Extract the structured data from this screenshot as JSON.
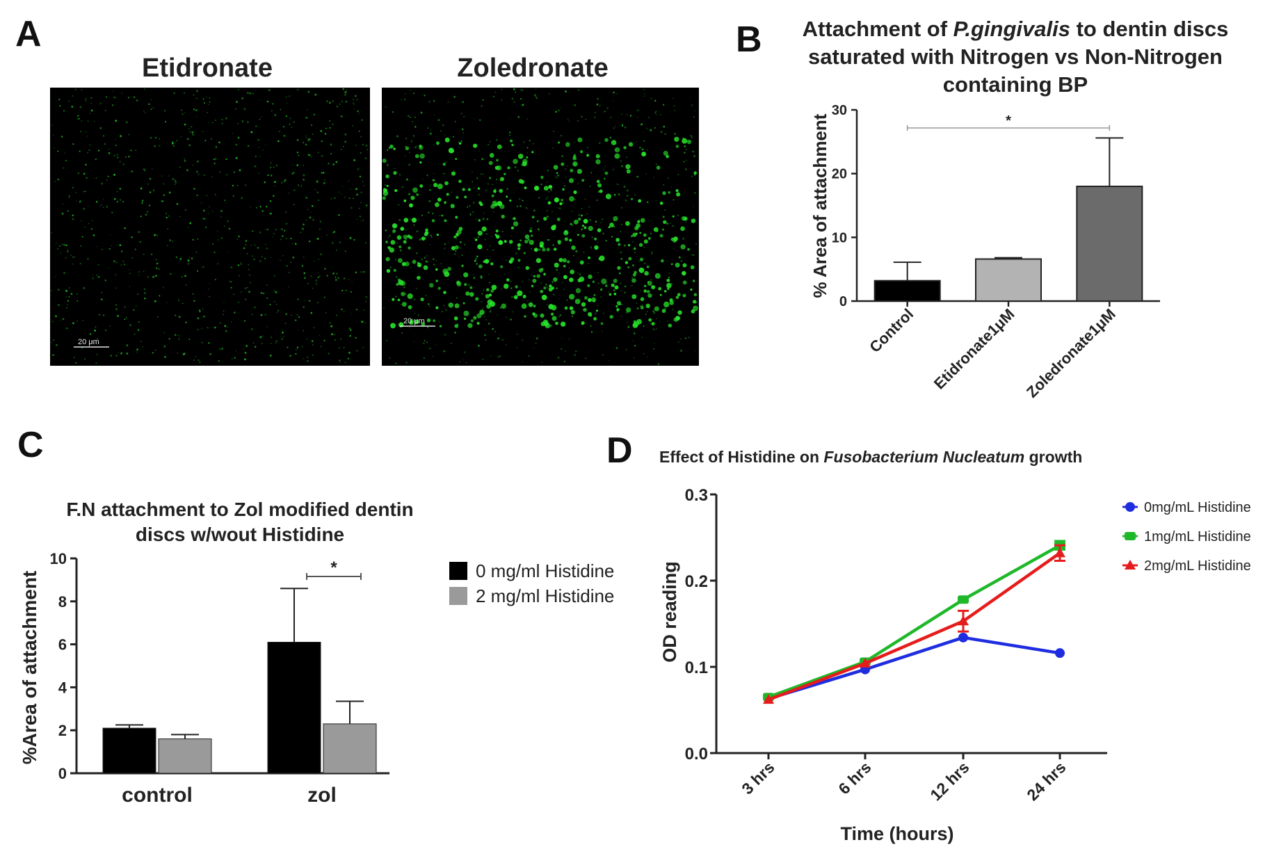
{
  "panels": {
    "a": {
      "letter": "A",
      "left_title": "Etidronate",
      "right_title": "Zoledronate",
      "scale_bar_left": "20 μm",
      "scale_bar_right": "20 μm"
    },
    "b": {
      "letter": "B"
    },
    "c": {
      "letter": "C"
    },
    "d": {
      "letter": "D"
    }
  },
  "colors": {
    "black_bar": "#000000",
    "light_gray_bar": "#b3b3b3",
    "dark_gray_bar": "#6b6b6b",
    "c_gray_bar": "#9a9a9a",
    "series_0": "#1f2de0",
    "series_1": "#1fb82a",
    "series_2": "#e61c1c",
    "microscopy_bg": "#000000",
    "microscopy_fluor": "#27e02a"
  },
  "chart_data": [
    {
      "id": "B",
      "type": "bar",
      "title_lines": [
        [
          "Attachment of ",
          "P.gingivalis",
          " to dentin discs"
        ],
        "saturated with Nitrogen vs Non-Nitrogen",
        "containing BP"
      ],
      "ylabel": "% Area of attachment",
      "ylim": [
        0,
        30
      ],
      "yticks": [
        0,
        10,
        20,
        30
      ],
      "categories": [
        "Control",
        "Etidronate1μM",
        "Zoledronate1μM"
      ],
      "values": [
        3.2,
        6.6,
        18.0
      ],
      "errors": [
        2.9,
        0.2,
        7.6
      ],
      "bar_colors": [
        "#000000",
        "#b3b3b3",
        "#6b6b6b"
      ],
      "significance": {
        "label": "*",
        "from": 0,
        "to": 2
      }
    },
    {
      "id": "C",
      "type": "bar",
      "title_lines": [
        "F.N attachment to Zol modified dentin",
        "discs w/wout Histidine"
      ],
      "ylabel": "%Area of attachment",
      "ylim": [
        0,
        10
      ],
      "yticks": [
        0,
        2,
        4,
        6,
        8,
        10
      ],
      "categories": [
        "control",
        "zol"
      ],
      "series": [
        {
          "name": "0 mg/ml Histidine",
          "values": [
            2.1,
            6.1
          ],
          "errors": [
            0.15,
            2.5
          ],
          "color": "#000000"
        },
        {
          "name": "2 mg/ml Histidine",
          "values": [
            1.6,
            2.3
          ],
          "errors": [
            0.2,
            1.05
          ],
          "color": "#9a9a9a"
        }
      ],
      "significance": {
        "label": "*",
        "category": 1
      },
      "legend_position": "right"
    },
    {
      "id": "D",
      "type": "line",
      "title_parts": [
        "Effect of Histidine on ",
        "Fusobacterium Nucleatum",
        " growth"
      ],
      "xlabel": "Time (hours)",
      "ylabel": "OD reading",
      "x": [
        "3 hrs",
        "6 hrs",
        "12 hrs",
        "24 hrs"
      ],
      "ylim": [
        0.0,
        0.3
      ],
      "yticks": [
        "0.0",
        "0.1",
        "0.2",
        "0.3"
      ],
      "series": [
        {
          "name": "0mg/mL Histidine",
          "values": [
            0.063,
            0.097,
            0.134,
            0.116
          ],
          "errors": [
            0.002,
            0.002,
            0.003,
            0.002
          ],
          "color": "#1f2de0",
          "marker": "circle"
        },
        {
          "name": "1mg/mL Histidine",
          "values": [
            0.065,
            0.106,
            0.178,
            0.241
          ],
          "errors": [
            0.002,
            0.002,
            0.003,
            0.005
          ],
          "color": "#1fb82a",
          "marker": "square"
        },
        {
          "name": "2mg/mL Histidine",
          "values": [
            0.062,
            0.104,
            0.153,
            0.232
          ],
          "errors": [
            0.002,
            0.003,
            0.012,
            0.009
          ],
          "color": "#e61c1c",
          "marker": "triangle"
        }
      ],
      "legend_position": "top-right"
    }
  ]
}
